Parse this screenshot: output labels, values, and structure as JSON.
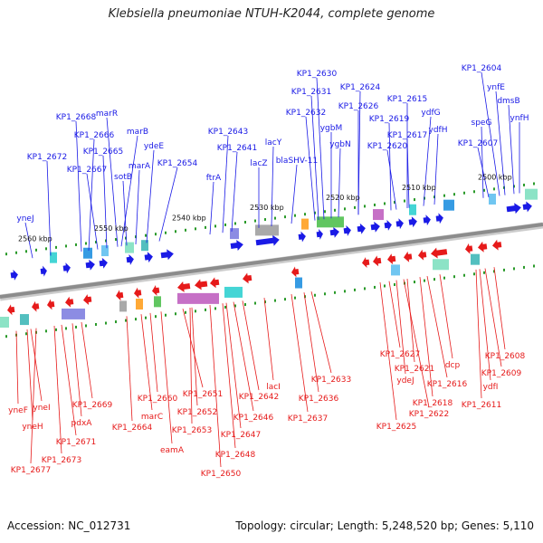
{
  "title": "Klebsiella pneumoniae NTUH-K2044, complete genome",
  "accession": "Accession: NC_012731",
  "summary": "Topology: circular; Length: 5,248,520 bp; Genes: 5,110",
  "colors": {
    "forward": "#1a1ae6",
    "reverse": "#e61a1a",
    "backbone": "#8c8c8c",
    "tick": "#2a9a2a"
  },
  "scale_labels": [
    "2560 kbp",
    "2550 kbp",
    "2540 kbp",
    "2530 kbp",
    "2520 kbp",
    "2510 kbp",
    "2500 kbp"
  ],
  "forward_labels": [
    "yneJ",
    "KP1_2672",
    "KP1_2668",
    "KP1_2666",
    "KP1_2667",
    "KP1_2665",
    "marR",
    "marB",
    "sotB",
    "marA",
    "ydeE",
    "KP1_2654",
    "KP1_2643",
    "KP1_2641",
    "ftrA",
    "lacY",
    "lacZ",
    "blaSHV-11",
    "KP1_2630",
    "KP1_2631",
    "KP1_2632",
    "ygbM",
    "ygbN",
    "KP1_2624",
    "KP1_2626",
    "KP1_2619",
    "KP1_2620",
    "KP1_2615",
    "KP1_2617",
    "ydfG",
    "ydfH",
    "KP1_2604",
    "ynfE",
    "dmsB",
    "ynfH",
    "speG",
    "KP1_2607"
  ],
  "reverse_labels": [
    "yneF",
    "yneI",
    "yneH",
    "KP1_2677",
    "pdxA",
    "KP1_2671",
    "KP1_2673",
    "KP1_2669",
    "KP1_2664",
    "marC",
    "KP1_2660",
    "eamA",
    "KP1_2653",
    "KP1_2652",
    "KP1_2651",
    "KP1_2650",
    "KP1_2648",
    "KP1_2647",
    "KP1_2646",
    "KP1_2642",
    "lacI",
    "KP1_2637",
    "KP1_2636",
    "KP1_2633",
    "KP1_2627",
    "KP1_2625",
    "KP1_2622",
    "ydeJ",
    "KP1_2621",
    "KP1_2618",
    "KP1_2616",
    "dcp",
    "KP1_2611",
    "ydfI",
    "KP1_2609",
    "KP1_2608"
  ]
}
